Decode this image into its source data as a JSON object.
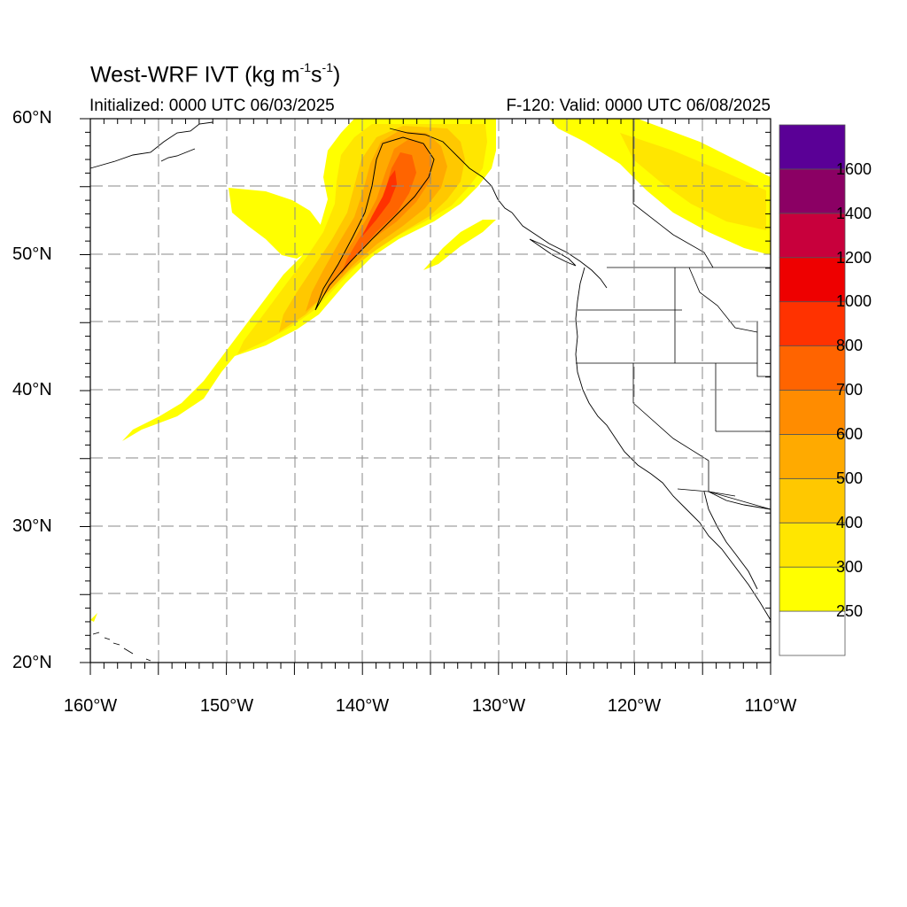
{
  "title": {
    "main": "West-WRF IVT (kg m",
    "sup1": "-1",
    "mid": "s",
    "sup2": "-1",
    "end": ")"
  },
  "subtitle_left": "Initialized: 0000 UTC 06/03/2025",
  "subtitle_right": "F-120: Valid: 0000 UTC 06/08/2025",
  "lat_labels": [
    "60°N",
    "50°N",
    "40°N",
    "30°N",
    "20°N"
  ],
  "lon_labels": [
    "160°W",
    "150°W",
    "140°W",
    "130°W",
    "120°W",
    "110°W"
  ],
  "colorbar": {
    "labels": [
      "1600",
      "1400",
      "1200",
      "1000",
      "800",
      "700",
      "600",
      "500",
      "400",
      "300",
      "250"
    ],
    "colors": [
      "#ffffff",
      "#ffff00",
      "#ffe600",
      "#ffc800",
      "#ffaa00",
      "#ff8c00",
      "#ff6400",
      "#ff3200",
      "#ee0000",
      "#c8003c",
      "#8b0064",
      "#5a0096"
    ]
  },
  "colors": {
    "grid": "#888888",
    "coast": "#000000",
    "contour": "#000000"
  }
}
